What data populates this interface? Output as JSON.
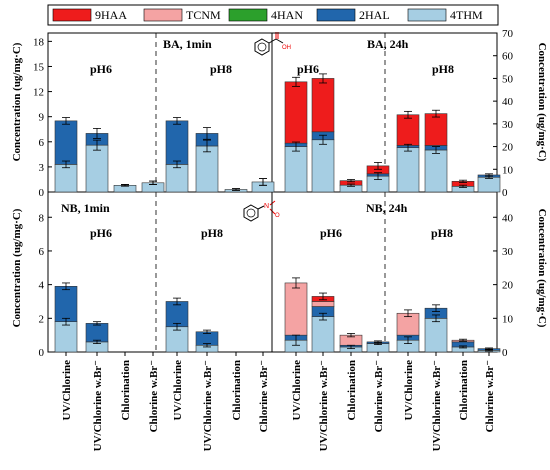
{
  "legend": [
    {
      "name": "9HAA",
      "color": "#ee1c1c"
    },
    {
      "name": "TCNM",
      "color": "#f4a3a3"
    },
    {
      "name": "4HAN",
      "color": "#2ca02c"
    },
    {
      "name": "2HAL",
      "color": "#2166ac"
    },
    {
      "name": "4THM",
      "color": "#a6cee3"
    }
  ],
  "ylabel_left": "Concentration (ug/mg·C)",
  "ylabel_right": "Concentration (ug/mg·C)",
  "categories": [
    "UV/Chlorine",
    "UV/Chlorine w.Br⁻",
    "Chlorination",
    "Chlorine w.Br⁻"
  ],
  "panels": {
    "top": {
      "left_title": "BA, 1min",
      "right_title": "BA, 24h",
      "group_labels": [
        "pH6",
        "pH8",
        "pH6",
        "pH8"
      ],
      "icon": "benzoic-acid-structure-icon",
      "icon_text": "OH"
    },
    "bottom": {
      "left_title": "NB, 1min",
      "right_title": "NB, 24h",
      "group_labels": [
        "pH6",
        "pH8",
        "pH6",
        "pH8"
      ],
      "icon": "nitrobenzene-structure-icon",
      "icon_text": "O"
    }
  },
  "chart_data": [
    {
      "type": "bar",
      "stacked": true,
      "title": "BA, 1min",
      "ylabel": "Concentration (ug/mg·C)",
      "ylim": [
        0,
        19
      ],
      "yticks": [
        0,
        3,
        6,
        9,
        12,
        15,
        18
      ],
      "groups": [
        {
          "label": "pH6",
          "bars": [
            {
              "category": "UV/Chlorine",
              "4THM": 3.3,
              "2HAL": 5.2,
              "err": 0.4
            },
            {
              "category": "UV/Chlorine w.Br⁻",
              "4THM": 5.6,
              "2HAL": 1.4,
              "err": 0.6
            },
            {
              "category": "Chlorination",
              "4THM": 0.8,
              "2HAL": 0.0,
              "err": 0.1
            },
            {
              "category": "Chlorine w.Br⁻",
              "4THM": 1.1,
              "2HAL": 0.0,
              "err": 0.2
            }
          ]
        },
        {
          "label": "pH8",
          "bars": [
            {
              "category": "UV/Chlorine",
              "4THM": 3.3,
              "2HAL": 5.2,
              "err": 0.4
            },
            {
              "category": "UV/Chlorine w.Br⁻",
              "4THM": 5.5,
              "2HAL": 1.5,
              "err": 0.7
            },
            {
              "category": "Chlorination",
              "4THM": 0.3,
              "2HAL": 0.0,
              "err": 0.1
            },
            {
              "category": "Chlorine w.Br⁻",
              "4THM": 1.2,
              "2HAL": 0.0,
              "err": 0.4
            }
          ]
        }
      ]
    },
    {
      "type": "bar",
      "stacked": true,
      "title": "BA, 24h",
      "ylabel": "Concentration (ug/mg·C)",
      "ylim": [
        0,
        70
      ],
      "yticks": [
        0,
        10,
        20,
        30,
        40,
        50,
        60,
        70
      ],
      "groups": [
        {
          "label": "pH6",
          "bars": [
            {
              "category": "UV/Chlorine",
              "4THM": 20,
              "2HAL": 1.5,
              "TCNM": 0,
              "9HAA": 27,
              "err": 2
            },
            {
              "category": "UV/Chlorine w.Br⁻",
              "4THM": 23,
              "2HAL": 3.5,
              "TCNM": 0,
              "9HAA": 23.5,
              "err": 2
            },
            {
              "category": "Chlorination",
              "4THM": 3,
              "2HAL": 0,
              "TCNM": 0,
              "9HAA": 2,
              "err": 0.5
            },
            {
              "category": "Chlorine w.Br⁻",
              "4THM": 7,
              "2HAL": 1,
              "TCNM": 0,
              "9HAA": 3.5,
              "err": 1.5
            }
          ]
        },
        {
          "label": "pH8",
          "bars": [
            {
              "category": "UV/Chlorine",
              "4THM": 19.5,
              "2HAL": 1,
              "TCNM": 0,
              "9HAA": 13.5,
              "err": 1.5
            },
            {
              "category": "UV/Chlorine w.Br⁻",
              "4THM": 18.5,
              "2HAL": 2,
              "TCNM": 0,
              "9HAA": 14,
              "err": 1.5
            },
            {
              "category": "Chlorination",
              "4THM": 2.5,
              "2HAL": 0,
              "TCNM": 0,
              "9HAA": 2.2,
              "err": 0.5
            },
            {
              "category": "Chlorine w.Br⁻",
              "4THM": 6.5,
              "2HAL": 1,
              "TCNM": 0,
              "9HAA": 0,
              "err": 0.5
            }
          ]
        }
      ]
    },
    {
      "type": "bar",
      "stacked": true,
      "title": "NB, 1min",
      "ylabel": "Concentration (ug/mg·C)",
      "ylim": [
        0,
        9.5
      ],
      "yticks": [
        0,
        2,
        4,
        6,
        8
      ],
      "groups": [
        {
          "label": "pH6",
          "bars": [
            {
              "category": "UV/Chlorine",
              "4THM": 1.8,
              "2HAL": 2.1,
              "err": 0.2
            },
            {
              "category": "UV/Chlorine w.Br⁻",
              "4THM": 0.6,
              "2HAL": 1.1,
              "err": 0.1
            },
            {
              "category": "Chlorination",
              "4THM": 0,
              "2HAL": 0,
              "err": 0
            },
            {
              "category": "Chlorine w.Br⁻",
              "4THM": 0,
              "2HAL": 0,
              "err": 0
            }
          ]
        },
        {
          "label": "pH8",
          "bars": [
            {
              "category": "UV/Chlorine",
              "4THM": 1.5,
              "2HAL": 1.5,
              "err": 0.2
            },
            {
              "category": "UV/Chlorine w.Br⁻",
              "4THM": 0.4,
              "2HAL": 0.8,
              "err": 0.1
            },
            {
              "category": "Chlorination",
              "4THM": 0,
              "2HAL": 0,
              "err": 0
            },
            {
              "category": "Chlorine w.Br⁻",
              "4THM": 0,
              "2HAL": 0,
              "err": 0
            }
          ]
        }
      ]
    },
    {
      "type": "bar",
      "stacked": true,
      "title": "NB, 24h",
      "ylabel": "Concentration (ug/mg·C)",
      "ylim": [
        0,
        47.5
      ],
      "yticks": [
        0,
        10,
        20,
        30,
        40
      ],
      "groups": [
        {
          "label": "pH6",
          "bars": [
            {
              "category": "UV/Chlorine",
              "4THM": 3.5,
              "2HAL": 1.5,
              "TCNM": 15.5,
              "9HAA": 0,
              "err": 1.5
            },
            {
              "category": "UV/Chlorine w.Br⁻",
              "4THM": 10.5,
              "2HAL": 3,
              "TCNM": 1.5,
              "9HAA": 1.5,
              "err": 1
            },
            {
              "category": "Chlorination",
              "4THM": 1.5,
              "2HAL": 0.5,
              "TCNM": 3,
              "9HAA": 0,
              "err": 0.5
            },
            {
              "category": "Chlorine w.Br⁻",
              "4THM": 2.5,
              "2HAL": 0.5,
              "TCNM": 0,
              "9HAA": 0,
              "err": 0.3
            }
          ]
        },
        {
          "label": "pH8",
          "bars": [
            {
              "category": "UV/Chlorine",
              "4THM": 3.5,
              "2HAL": 1.5,
              "TCNM": 6.5,
              "9HAA": 0,
              "err": 1
            },
            {
              "category": "UV/Chlorine w.Br⁻",
              "4THM": 10,
              "2HAL": 3,
              "TCNM": 0,
              "9HAA": 0,
              "err": 1
            },
            {
              "category": "Chlorination",
              "4THM": 1.5,
              "2HAL": 1.5,
              "TCNM": 0.5,
              "9HAA": 0,
              "err": 0.3
            },
            {
              "category": "Chlorine w.Br⁻",
              "4THM": 0.5,
              "2HAL": 0.5,
              "TCNM": 0,
              "9HAA": 0,
              "err": 0.2
            }
          ]
        }
      ]
    }
  ]
}
